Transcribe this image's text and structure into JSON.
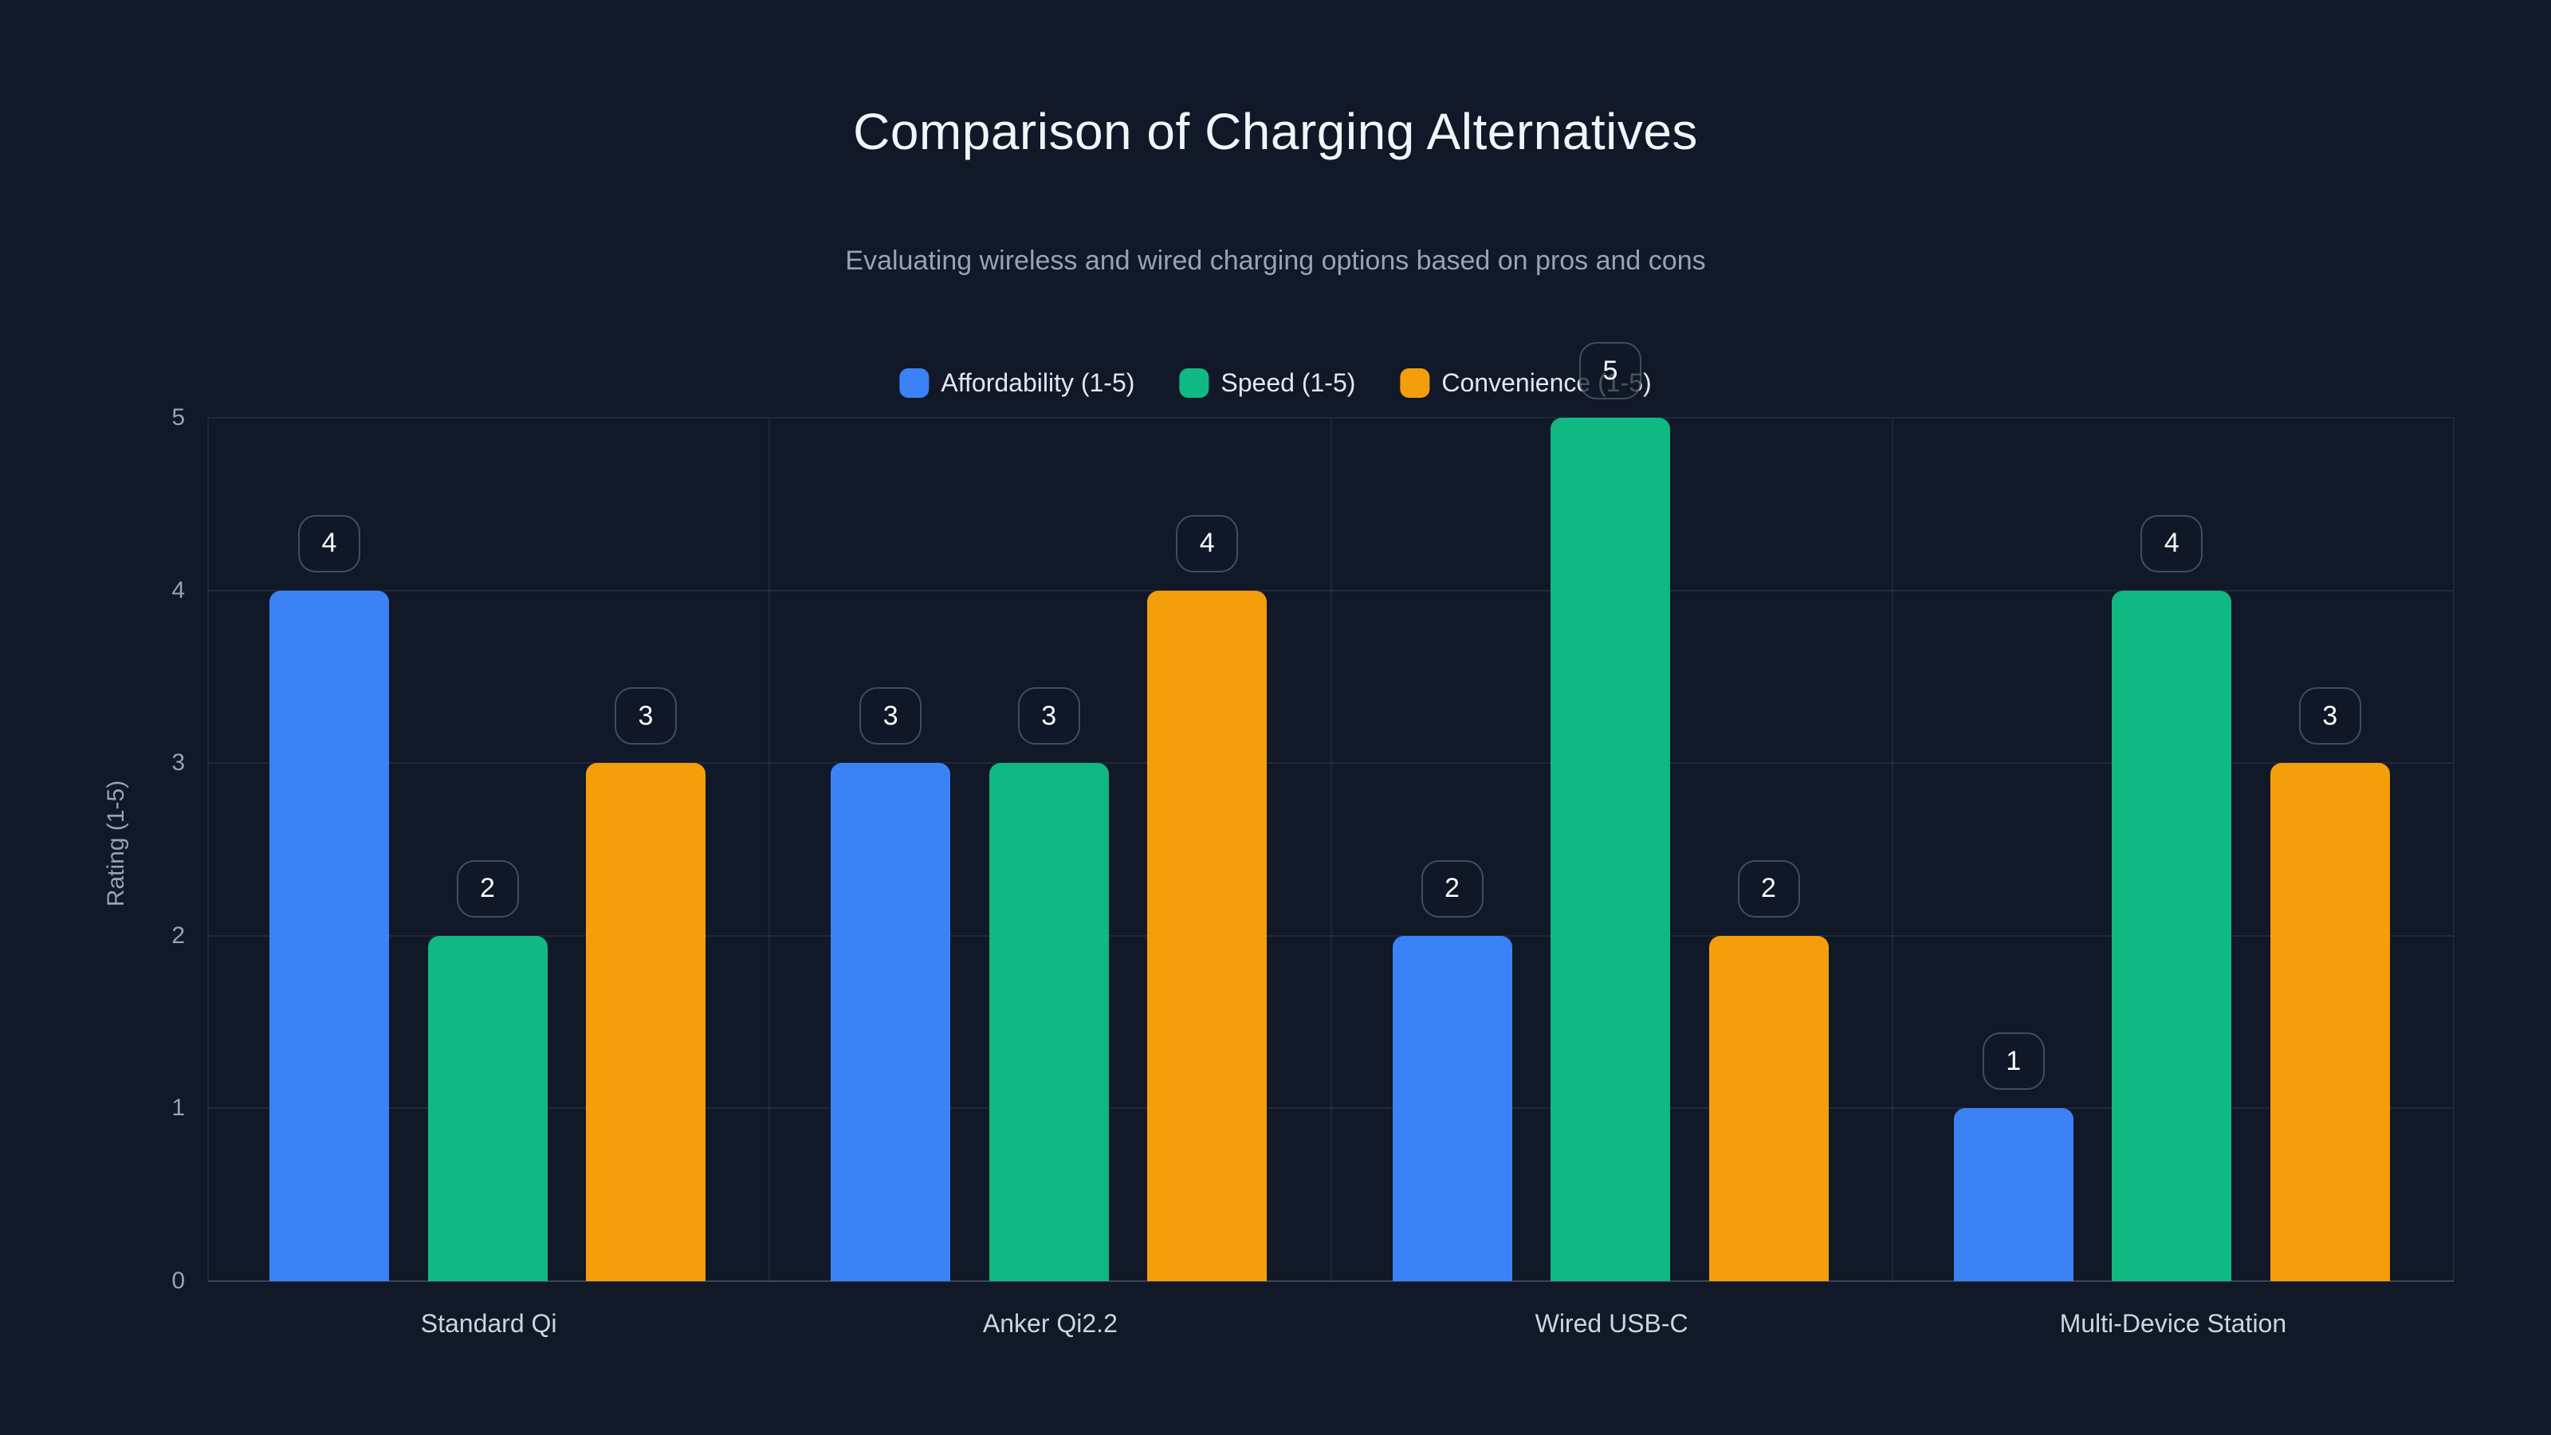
{
  "page": {
    "background_color": "#111827",
    "text_colors": {
      "title": "#f1f5f9",
      "subtitle": "#94a3b8",
      "axis_ticks": "#94a3b8",
      "category_labels": "#cbd5e1",
      "legend_labels": "#e2e8f0",
      "badge_value": "#f8fafc"
    }
  },
  "chart_data": {
    "type": "bar",
    "title": "Comparison of Charging Alternatives",
    "subtitle": "Evaluating wireless and wired charging options based on pros and cons",
    "categories": [
      "Standard Qi",
      "Anker Qi2.2",
      "Wired USB-C",
      "Multi-Device Station"
    ],
    "series": [
      {
        "name": "Affordability (1-5)",
        "color": "#3b82f6",
        "values": [
          4,
          3,
          2,
          1
        ]
      },
      {
        "name": "Speed (1-5)",
        "color": "#10b981",
        "values": [
          2,
          3,
          5,
          4
        ]
      },
      {
        "name": "Convenience (1-5)",
        "color": "#f59e0b",
        "values": [
          3,
          4,
          2,
          3
        ]
      }
    ],
    "ylabel": "Rating (1-5)",
    "ylim": [
      0,
      5
    ],
    "yticks": [
      0,
      1,
      2,
      3,
      4,
      5
    ],
    "grid": true,
    "legend_position": "top-center",
    "value_labels_style": "rounded badge above each bar"
  }
}
